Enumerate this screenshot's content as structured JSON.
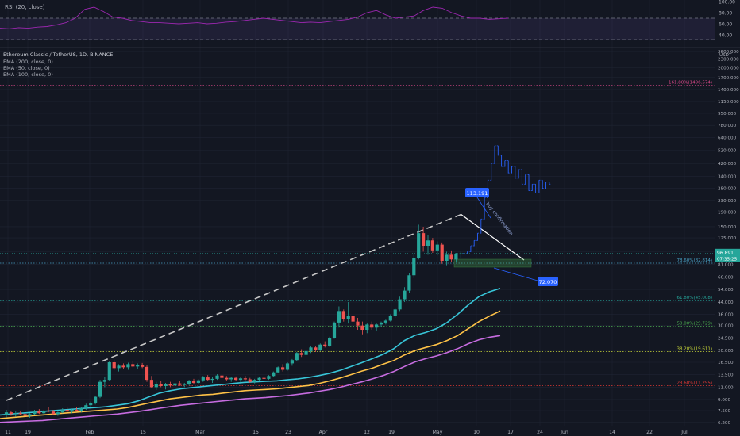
{
  "colors": {
    "background": "#131722",
    "grid": "#1f2433",
    "up": "#26a69a",
    "down": "#ef5350",
    "ema200": "#c76ce0",
    "ema50": "#ffc247",
    "ema100": "#38c6d9",
    "rsi": "#9c27b0",
    "text": "#b2b5be",
    "fib_1618": "#e04a8b",
    "fib_786": "#4aa3c7",
    "fib_618": "#26a69a",
    "fib_50": "#4caf50",
    "fib_382": "#cddc39",
    "fib_236": "#e53935",
    "accent": "#2962ff",
    "last_price": "#26a69a"
  },
  "rsi_panel": {
    "label": "RSI (20, close)",
    "ticks": [
      "100.00",
      "80.00",
      "60.00",
      "40.00"
    ]
  },
  "legend": {
    "symbol": "Ethereum Classic / TetherUS, 1D, BINANCE",
    "indicators": [
      "EMA (200, close, 0)",
      "EMA (50, close, 0)",
      "EMA (100, close, 0)"
    ]
  },
  "price_axis": {
    "ticks": [
      "2600.000",
      "2300.000",
      "2000.000",
      "1700.000",
      "1400.000",
      "1150.000",
      "950.000",
      "780.000",
      "640.000",
      "520.000",
      "420.000",
      "340.000",
      "280.000",
      "230.000",
      "190.000",
      "150.000",
      "125.000",
      "100.000",
      "81.000",
      "66.000",
      "54.000",
      "44.000",
      "36.000",
      "30.000",
      "24.500",
      "20.000",
      "16.500",
      "13.500",
      "11.000",
      "9.000",
      "7.500",
      "6.200"
    ],
    "unit": "USDT",
    "last_price": "96.891",
    "countdown": "07:35:25"
  },
  "time_axis": {
    "ticks": [
      "11",
      "19",
      "Feb",
      "15",
      "Mar",
      "15",
      "23",
      "Apr",
      "12",
      "19",
      "May",
      "10",
      "17",
      "24",
      "Jun",
      "14",
      "22",
      "Jul"
    ]
  },
  "fib_levels": [
    {
      "label": "161.80%(1496.574)",
      "value": 1496.574,
      "color": "#e04a8b"
    },
    {
      "label": "78.60%(82.814)",
      "value": 82.814,
      "color": "#4aa3c7"
    },
    {
      "label": "61.80%(45.008)",
      "value": 45.008,
      "color": "#26a69a"
    },
    {
      "label": "50.00%(29.729)",
      "value": 29.729,
      "color": "#4caf50"
    },
    {
      "label": "38.20%(19.611)",
      "value": 19.611,
      "color": "#cddc39"
    },
    {
      "label": "23.60%(11.295)",
      "value": 11.295,
      "color": "#e53935"
    }
  ],
  "annotations": {
    "high_label": "113.191",
    "low_label": "72.070",
    "diagonal_text": "buy confirmation"
  },
  "chart_data": {
    "type": "candlestick",
    "title": "Ethereum Classic / TetherUS, 1D, BINANCE",
    "y_scale": "log",
    "ylim": [
      5.8,
      2700
    ],
    "x_dates": [
      "2021-01-11",
      "2021-07-01"
    ],
    "candles": [
      [
        7.0,
        7.6,
        6.7,
        7.3
      ],
      [
        7.3,
        7.5,
        6.9,
        7.1
      ],
      [
        7.1,
        7.4,
        6.8,
        7.2
      ],
      [
        7.2,
        7.5,
        7.0,
        7.1
      ],
      [
        7.1,
        7.3,
        6.8,
        6.9
      ],
      [
        6.9,
        7.2,
        6.7,
        7.1
      ],
      [
        7.1,
        7.6,
        7.0,
        7.4
      ],
      [
        7.4,
        7.7,
        7.1,
        7.2
      ],
      [
        7.2,
        7.6,
        7.0,
        7.5
      ],
      [
        7.5,
        7.9,
        7.3,
        7.4
      ],
      [
        7.4,
        7.6,
        7.0,
        7.1
      ],
      [
        7.1,
        7.4,
        6.9,
        7.3
      ],
      [
        7.3,
        7.8,
        7.2,
        7.6
      ],
      [
        7.6,
        7.9,
        7.3,
        7.4
      ],
      [
        7.4,
        7.7,
        7.2,
        7.6
      ],
      [
        7.6,
        8.0,
        7.4,
        7.5
      ],
      [
        7.5,
        7.9,
        7.3,
        7.8
      ],
      [
        7.8,
        8.4,
        7.6,
        8.2
      ],
      [
        8.2,
        8.7,
        8.0,
        8.5
      ],
      [
        8.5,
        9.6,
        8.3,
        9.4
      ],
      [
        9.4,
        12.4,
        9.2,
        12.0
      ],
      [
        12.0,
        13.0,
        11.0,
        12.4
      ],
      [
        12.4,
        16.8,
        12.2,
        16.5
      ],
      [
        16.5,
        17.2,
        14.5,
        15.0
      ],
      [
        15.0,
        16.0,
        14.2,
        15.6
      ],
      [
        15.6,
        16.2,
        14.8,
        15.2
      ],
      [
        15.2,
        16.4,
        14.6,
        16.0
      ],
      [
        16.0,
        16.8,
        15.2,
        15.4
      ],
      [
        15.4,
        16.2,
        14.8,
        15.8
      ],
      [
        15.8,
        16.3,
        15.0,
        15.3
      ],
      [
        15.3,
        15.8,
        12.0,
        12.4
      ],
      [
        12.4,
        13.2,
        10.8,
        11.0
      ],
      [
        11.0,
        12.0,
        10.5,
        11.6
      ],
      [
        11.6,
        12.2,
        11.0,
        11.2
      ],
      [
        11.2,
        11.8,
        10.6,
        11.5
      ],
      [
        11.5,
        12.0,
        11.0,
        11.3
      ],
      [
        11.3,
        11.9,
        10.9,
        11.7
      ],
      [
        11.7,
        12.1,
        11.2,
        11.4
      ],
      [
        11.4,
        11.8,
        11.0,
        11.6
      ],
      [
        11.6,
        12.4,
        11.3,
        12.2
      ],
      [
        12.2,
        12.6,
        11.6,
        11.8
      ],
      [
        11.8,
        12.5,
        11.5,
        12.3
      ],
      [
        12.3,
        13.2,
        12.0,
        12.9
      ],
      [
        12.9,
        13.4,
        12.2,
        12.4
      ],
      [
        12.4,
        12.9,
        11.8,
        12.6
      ],
      [
        12.6,
        13.6,
        12.4,
        13.3
      ],
      [
        13.3,
        13.8,
        12.6,
        12.8
      ],
      [
        12.8,
        13.2,
        12.2,
        12.5
      ],
      [
        12.5,
        13.0,
        12.0,
        12.8
      ],
      [
        12.8,
        13.1,
        12.2,
        12.4
      ],
      [
        12.4,
        12.9,
        11.9,
        12.7
      ],
      [
        12.7,
        13.2,
        12.3,
        12.5
      ],
      [
        12.5,
        12.8,
        11.8,
        12.0
      ],
      [
        12.0,
        12.6,
        11.7,
        12.4
      ],
      [
        12.4,
        13.0,
        12.1,
        12.8
      ],
      [
        12.8,
        13.2,
        12.3,
        12.6
      ],
      [
        12.6,
        13.4,
        12.4,
        13.2
      ],
      [
        13.2,
        14.2,
        13.0,
        14.0
      ],
      [
        14.0,
        15.4,
        13.8,
        15.2
      ],
      [
        15.2,
        16.0,
        14.2,
        14.6
      ],
      [
        14.6,
        16.5,
        14.4,
        16.2
      ],
      [
        16.2,
        17.4,
        15.6,
        17.1
      ],
      [
        17.1,
        19.5,
        16.8,
        19.2
      ],
      [
        19.2,
        20.4,
        18.0,
        18.6
      ],
      [
        18.6,
        20.0,
        18.2,
        19.8
      ],
      [
        19.8,
        21.5,
        19.2,
        21.0
      ],
      [
        21.0,
        21.6,
        19.5,
        20.2
      ],
      [
        20.2,
        22.4,
        19.8,
        22.0
      ],
      [
        22.0,
        23.2,
        21.0,
        21.6
      ],
      [
        21.6,
        25.0,
        21.2,
        24.6
      ],
      [
        24.6,
        32.0,
        24.2,
        31.5
      ],
      [
        31.5,
        41.0,
        29.0,
        38.0
      ],
      [
        38.0,
        39.0,
        32.0,
        33.5
      ],
      [
        33.5,
        44.0,
        31.0,
        35.0
      ],
      [
        35.0,
        38.0,
        30.5,
        32.0
      ],
      [
        32.0,
        34.0,
        28.0,
        30.0
      ],
      [
        30.0,
        32.0,
        26.0,
        28.0
      ],
      [
        28.0,
        31.0,
        26.5,
        30.5
      ],
      [
        30.5,
        32.0,
        28.0,
        29.0
      ],
      [
        29.0,
        31.0,
        27.5,
        30.5
      ],
      [
        30.5,
        32.0,
        29.5,
        31.5
      ],
      [
        31.5,
        33.0,
        30.5,
        32.5
      ],
      [
        32.5,
        36.0,
        32.0,
        35.0
      ],
      [
        35.0,
        40.0,
        34.0,
        39.0
      ],
      [
        39.0,
        48.0,
        38.0,
        46.0
      ],
      [
        46.0,
        56.0,
        44.0,
        53.0
      ],
      [
        53.0,
        70.0,
        51.0,
        68.0
      ],
      [
        68.0,
        95.0,
        65.0,
        90.0
      ],
      [
        90.0,
        155.0,
        88.0,
        135.0
      ],
      [
        135.0,
        150.0,
        100.0,
        110.0
      ],
      [
        110.0,
        130.0,
        95.0,
        120.0
      ],
      [
        120.0,
        125.0,
        98.0,
        102.0
      ],
      [
        102.0,
        118.0,
        94.0,
        112.0
      ],
      [
        112.0,
        116.0,
        82.0,
        86.0
      ],
      [
        86.0,
        100.0,
        80.0,
        95.0
      ],
      [
        95.0,
        102.0,
        84.0,
        88.0
      ],
      [
        88.0,
        98.0,
        84.0,
        96.0
      ],
      [
        96.0,
        100.0,
        90.0,
        96.9
      ]
    ],
    "ema_short": [
      7.0,
      7.1,
      7.2,
      7.3,
      7.4,
      7.5,
      7.6,
      7.7,
      7.8,
      7.9,
      8.0,
      8.2,
      8.4,
      8.8,
      9.4,
      10.0,
      10.4,
      10.7,
      10.9,
      11.1,
      11.3,
      11.5,
      11.7,
      11.9,
      12.0,
      12.1,
      12.2,
      12.4,
      12.6,
      12.9,
      13.3,
      13.8,
      14.5,
      15.4,
      16.4,
      17.5,
      18.8,
      20.6,
      23.5,
      25.6,
      26.8,
      28.5,
      31.5,
      36.0,
      42.0,
      48.0,
      52.0,
      55.0
    ],
    "ema_mid": [
      6.6,
      6.7,
      6.8,
      6.9,
      7.0,
      7.1,
      7.2,
      7.3,
      7.4,
      7.5,
      7.6,
      7.7,
      7.9,
      8.2,
      8.5,
      8.8,
      9.1,
      9.3,
      9.5,
      9.7,
      9.8,
      10.0,
      10.2,
      10.4,
      10.5,
      10.6,
      10.7,
      10.9,
      11.1,
      11.3,
      11.7,
      12.2,
      12.8,
      13.5,
      14.3,
      15.0,
      16.0,
      17.0,
      18.6,
      20.0,
      21.0,
      22.0,
      23.5,
      25.5,
      28.5,
      32.0,
      35.0,
      38.0
    ],
    "ema_long": [
      6.2,
      6.25,
      6.3,
      6.35,
      6.4,
      6.5,
      6.6,
      6.7,
      6.8,
      6.9,
      7.0,
      7.1,
      7.25,
      7.4,
      7.6,
      7.8,
      8.0,
      8.2,
      8.35,
      8.5,
      8.65,
      8.8,
      8.95,
      9.1,
      9.2,
      9.3,
      9.45,
      9.6,
      9.8,
      10.0,
      10.3,
      10.6,
      11.0,
      11.5,
      12.0,
      12.6,
      13.3,
      14.2,
      15.4,
      16.6,
      17.5,
      18.3,
      19.3,
      20.6,
      22.3,
      23.8,
      24.8,
      25.5
    ],
    "projection": [
      96.9,
      100,
      110,
      120,
      135,
      170,
      240,
      320,
      420,
      560,
      480,
      400,
      440,
      360,
      400,
      330,
      380,
      300,
      350,
      270,
      300,
      260,
      320,
      280,
      310,
      300
    ],
    "rsi": [
      52,
      51,
      53,
      52,
      54,
      55,
      58,
      62,
      70,
      86,
      90,
      82,
      72,
      70,
      66,
      64,
      62,
      62,
      61,
      60,
      61,
      62,
      60,
      61,
      63,
      64,
      66,
      68,
      70,
      68,
      66,
      64,
      62,
      63,
      62,
      64,
      66,
      68,
      72,
      80,
      84,
      76,
      70,
      72,
      74,
      84,
      90,
      88,
      80,
      74,
      70,
      70,
      68,
      69,
      70
    ]
  }
}
